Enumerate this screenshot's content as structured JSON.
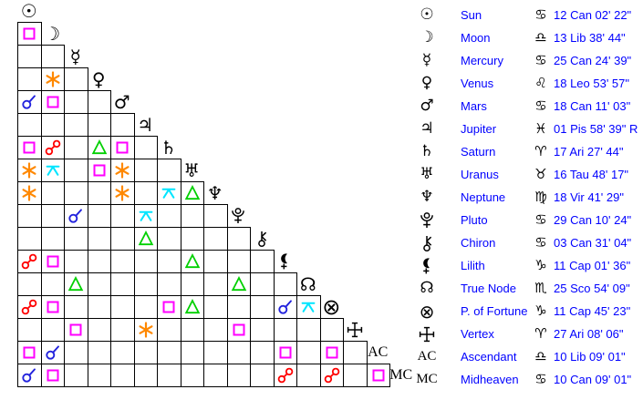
{
  "page": {
    "background": "#ffffff",
    "description": "Astrology aspect grid with planetary positions table"
  },
  "aspect_colors": {
    "conjunction": "#2222dd",
    "opposition": "#ff0000",
    "square": "#ff00ff",
    "trine": "#00d000",
    "sextile": "#ff8800",
    "quincunx": "#00e5ff"
  },
  "planets": [
    {
      "id": "sun",
      "name": "Sun",
      "glyph": "☉",
      "glyph_kind": "char",
      "sign_name": "cancer",
      "sign_glyph": "♋",
      "position": "12 Can 02' 22\""
    },
    {
      "id": "moon",
      "name": "Moon",
      "glyph": "☽",
      "glyph_kind": "char",
      "sign_name": "libra",
      "sign_glyph": "♎",
      "position": "13 Lib 38' 44\""
    },
    {
      "id": "mercury",
      "name": "Mercury",
      "glyph": "☿",
      "glyph_kind": "char",
      "sign_name": "cancer",
      "sign_glyph": "♋",
      "position": "25 Can 24' 39\""
    },
    {
      "id": "venus",
      "name": "Venus",
      "glyph": "♀",
      "glyph_kind": "char",
      "sign_name": "leo",
      "sign_glyph": "♌",
      "position": "18 Leo 53' 57\""
    },
    {
      "id": "mars",
      "name": "Mars",
      "glyph": "♂",
      "glyph_kind": "char",
      "sign_name": "cancer",
      "sign_glyph": "♋",
      "position": "18 Can 11' 03\""
    },
    {
      "id": "jupiter",
      "name": "Jupiter",
      "glyph": "♃",
      "glyph_kind": "char",
      "sign_name": "pisces",
      "sign_glyph": "♓",
      "position": "01 Pis 58' 39\" R"
    },
    {
      "id": "saturn",
      "name": "Saturn",
      "glyph": "♄",
      "glyph_kind": "char",
      "sign_name": "aries",
      "sign_glyph": "♈",
      "position": "17 Ari 27' 44\""
    },
    {
      "id": "uranus",
      "name": "Uranus",
      "glyph": "♅",
      "glyph_kind": "char",
      "sign_name": "taurus",
      "sign_glyph": "♉",
      "position": "16 Tau 48' 17\""
    },
    {
      "id": "neptune",
      "name": "Neptune",
      "glyph": "♆",
      "glyph_kind": "char",
      "sign_name": "virgo",
      "sign_glyph": "♍",
      "position": "18 Vir 41' 29\""
    },
    {
      "id": "pluto",
      "name": "Pluto",
      "glyph": "pluto",
      "glyph_kind": "svg",
      "sign_name": "cancer",
      "sign_glyph": "♋",
      "position": "29 Can 10' 24\""
    },
    {
      "id": "chiron",
      "name": "Chiron",
      "glyph": "chiron",
      "glyph_kind": "svg",
      "sign_name": "cancer",
      "sign_glyph": "♋",
      "position": "03 Can 31' 04\""
    },
    {
      "id": "lilith",
      "name": "Lilith",
      "glyph": "lilith",
      "glyph_kind": "svg",
      "sign_name": "capricorn",
      "sign_glyph": "♑",
      "position": "11 Cap 01' 36\""
    },
    {
      "id": "truenode",
      "name": "True Node",
      "glyph": "☊",
      "glyph_kind": "char",
      "sign_name": "scorpio",
      "sign_glyph": "♏",
      "position": "25 Sco 54' 09\""
    },
    {
      "id": "fortune",
      "name": "P. of Fortune",
      "glyph": "⊗",
      "glyph_kind": "char-big",
      "sign_name": "capricorn",
      "sign_glyph": "♑",
      "position": "11 Cap 45' 23\""
    },
    {
      "id": "vertex",
      "name": "Vertex",
      "glyph": "vertex",
      "glyph_kind": "svg",
      "sign_name": "aries",
      "sign_glyph": "♈",
      "position": "27 Ari 08' 06\""
    },
    {
      "id": "ascendant",
      "name": "Ascendant",
      "glyph": "AC",
      "glyph_kind": "text",
      "sign_name": "libra",
      "sign_glyph": "♎",
      "position": "10 Lib 09' 01\""
    },
    {
      "id": "midheaven",
      "name": "Midheaven",
      "glyph": "MC",
      "glyph_kind": "text",
      "sign_name": "cancer",
      "sign_glyph": "♋",
      "position": "10 Can 09' 01\""
    }
  ],
  "aspect_grid": {
    "rows": [
      {
        "planet": "sun",
        "cells": []
      },
      {
        "planet": "moon",
        "cells": [
          "square"
        ]
      },
      {
        "planet": "mercury",
        "cells": [
          null,
          null
        ]
      },
      {
        "planet": "venus",
        "cells": [
          null,
          "sextile",
          null
        ]
      },
      {
        "planet": "mars",
        "cells": [
          "conjunction",
          "square",
          null,
          null
        ]
      },
      {
        "planet": "jupiter",
        "cells": [
          null,
          null,
          null,
          null,
          null
        ]
      },
      {
        "planet": "saturn",
        "cells": [
          "square",
          "opposition",
          null,
          "trine",
          "square",
          null
        ]
      },
      {
        "planet": "uranus",
        "cells": [
          "sextile",
          "quincunx",
          null,
          "square",
          "sextile",
          null,
          null
        ]
      },
      {
        "planet": "neptune",
        "cells": [
          "sextile",
          null,
          null,
          null,
          "sextile",
          null,
          "quincunx",
          "trine"
        ]
      },
      {
        "planet": "pluto",
        "cells": [
          null,
          null,
          "conjunction",
          null,
          null,
          "quincunx",
          null,
          null,
          null
        ]
      },
      {
        "planet": "chiron",
        "cells": [
          null,
          null,
          null,
          null,
          null,
          "trine",
          null,
          null,
          null,
          null
        ]
      },
      {
        "planet": "lilith",
        "cells": [
          "opposition",
          "square",
          null,
          null,
          null,
          null,
          null,
          "trine",
          null,
          null,
          null
        ]
      },
      {
        "planet": "truenode",
        "cells": [
          null,
          null,
          "trine",
          null,
          null,
          null,
          null,
          null,
          null,
          "trine",
          null,
          null
        ]
      },
      {
        "planet": "fortune",
        "cells": [
          "opposition",
          "square",
          null,
          null,
          null,
          null,
          "square",
          "trine",
          null,
          null,
          null,
          "conjunction",
          "quincunx"
        ]
      },
      {
        "planet": "vertex",
        "cells": [
          null,
          null,
          "square",
          null,
          null,
          "sextile",
          null,
          null,
          null,
          "square",
          null,
          null,
          null,
          null
        ]
      },
      {
        "planet": "ascendant",
        "cells": [
          "square",
          "conjunction",
          null,
          null,
          null,
          null,
          null,
          null,
          null,
          null,
          null,
          "square",
          null,
          "square",
          null
        ]
      },
      {
        "planet": "midheaven",
        "cells": [
          "conjunction",
          "square",
          null,
          null,
          null,
          null,
          null,
          null,
          null,
          null,
          null,
          "opposition",
          null,
          "opposition",
          null,
          "square"
        ]
      }
    ]
  }
}
